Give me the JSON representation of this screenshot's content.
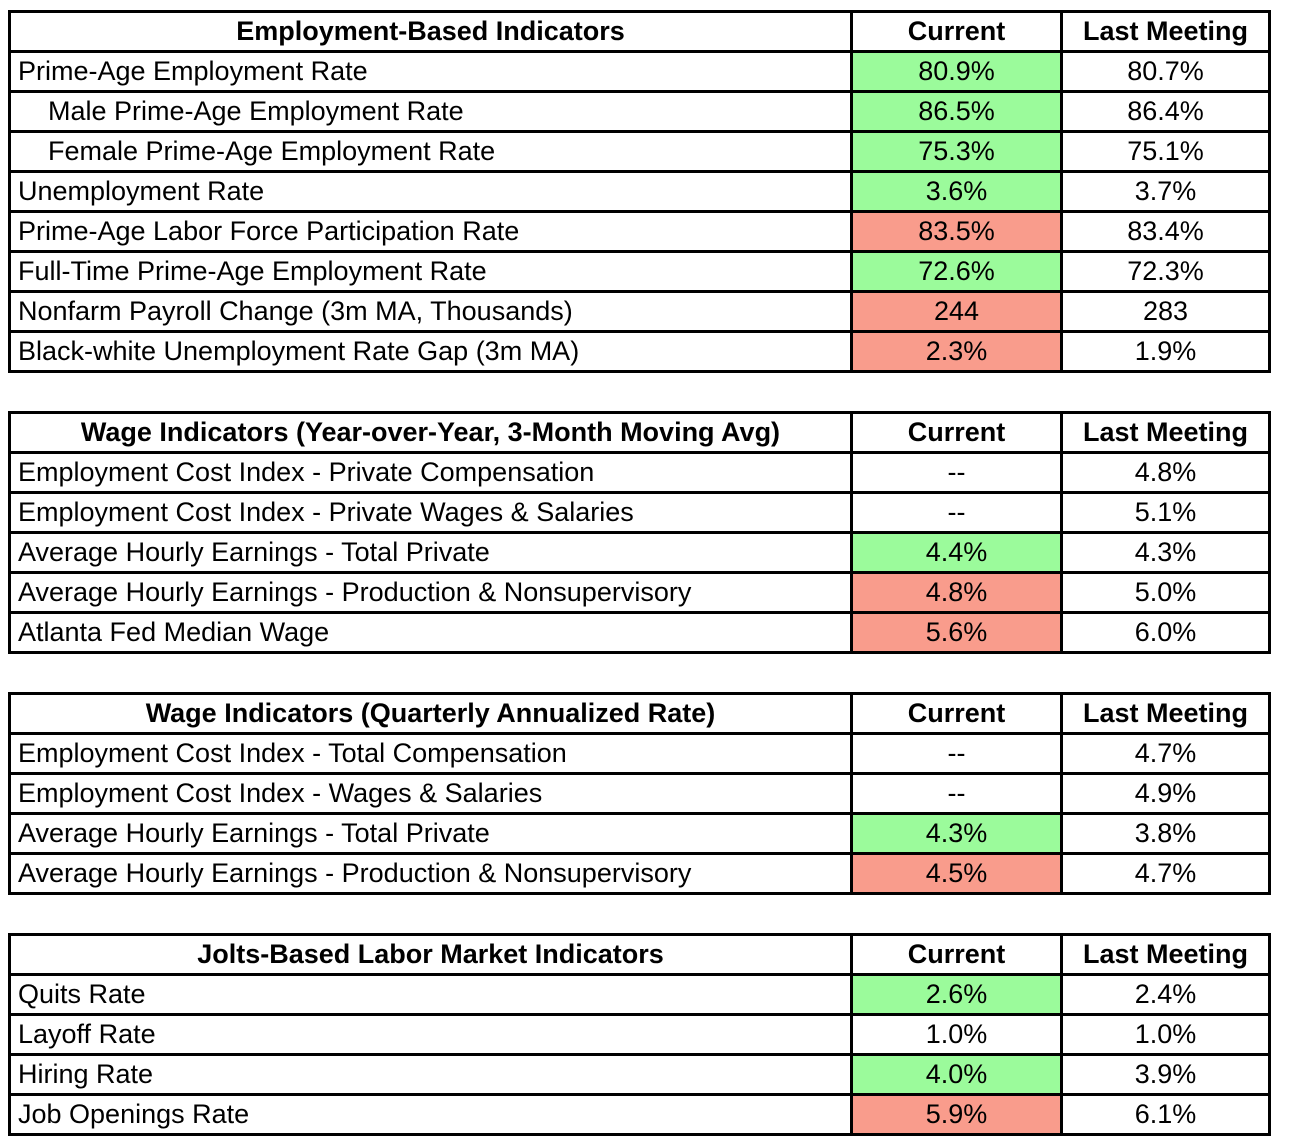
{
  "colors": {
    "green": "#9BFB9B",
    "red": "#F99C8C",
    "border": "#000000",
    "background": "#FFFFFF",
    "text": "#000000"
  },
  "chart_data": [
    {
      "type": "table",
      "title": "Employment-Based Indicators",
      "columns": [
        "Current",
        "Last Meeting"
      ],
      "rows": [
        {
          "label": "Prime-Age Employment Rate",
          "indent": false,
          "current": "80.9%",
          "highlight": "green",
          "last_meeting": "80.7%"
        },
        {
          "label": "Male Prime-Age Employment Rate",
          "indent": true,
          "current": "86.5%",
          "highlight": "green",
          "last_meeting": "86.4%"
        },
        {
          "label": "Female Prime-Age Employment Rate",
          "indent": true,
          "current": "75.3%",
          "highlight": "green",
          "last_meeting": "75.1%"
        },
        {
          "label": "Unemployment Rate",
          "indent": false,
          "current": "3.6%",
          "highlight": "green",
          "last_meeting": "3.7%"
        },
        {
          "label": "Prime-Age Labor Force Participation Rate",
          "indent": false,
          "current": "83.5%",
          "highlight": "red",
          "last_meeting": "83.4%"
        },
        {
          "label": "Full-Time Prime-Age Employment Rate",
          "indent": false,
          "current": "72.6%",
          "highlight": "green",
          "last_meeting": "72.3%"
        },
        {
          "label": "Nonfarm Payroll Change (3m MA, Thousands)",
          "indent": false,
          "current": "244",
          "highlight": "red",
          "last_meeting": "283"
        },
        {
          "label": "Black-white Unemployment Rate Gap (3m MA)",
          "indent": false,
          "current": "2.3%",
          "highlight": "red",
          "last_meeting": "1.9%"
        }
      ]
    },
    {
      "type": "table",
      "title": "Wage Indicators (Year-over-Year, 3-Month Moving Avg)",
      "columns": [
        "Current",
        "Last Meeting"
      ],
      "rows": [
        {
          "label": "Employment Cost Index - Private Compensation",
          "indent": false,
          "current": "--",
          "highlight": null,
          "last_meeting": "4.8%"
        },
        {
          "label": "Employment Cost Index - Private Wages & Salaries",
          "indent": false,
          "current": "--",
          "highlight": null,
          "last_meeting": "5.1%"
        },
        {
          "label": "Average Hourly Earnings - Total Private",
          "indent": false,
          "current": "4.4%",
          "highlight": "green",
          "last_meeting": "4.3%"
        },
        {
          "label": "Average Hourly Earnings - Production & Nonsupervisory",
          "indent": false,
          "current": "4.8%",
          "highlight": "red",
          "last_meeting": "5.0%"
        },
        {
          "label": "Atlanta Fed Median Wage",
          "indent": false,
          "current": "5.6%",
          "highlight": "red",
          "last_meeting": "6.0%"
        }
      ]
    },
    {
      "type": "table",
      "title": "Wage Indicators (Quarterly Annualized Rate)",
      "columns": [
        "Current",
        "Last Meeting"
      ],
      "rows": [
        {
          "label": "Employment Cost Index - Total Compensation",
          "indent": false,
          "current": "--",
          "highlight": null,
          "last_meeting": "4.7%"
        },
        {
          "label": "Employment Cost Index - Wages & Salaries",
          "indent": false,
          "current": "--",
          "highlight": null,
          "last_meeting": "4.9%"
        },
        {
          "label": "Average Hourly Earnings - Total Private",
          "indent": false,
          "current": "4.3%",
          "highlight": "green",
          "last_meeting": "3.8%"
        },
        {
          "label": "Average Hourly Earnings - Production & Nonsupervisory",
          "indent": false,
          "current": "4.5%",
          "highlight": "red",
          "last_meeting": "4.7%"
        }
      ]
    },
    {
      "type": "table",
      "title": "Jolts-Based Labor Market Indicators",
      "columns": [
        "Current",
        "Last Meeting"
      ],
      "rows": [
        {
          "label": "Quits Rate",
          "indent": false,
          "current": "2.6%",
          "highlight": "green",
          "last_meeting": "2.4%"
        },
        {
          "label": "Layoff Rate",
          "indent": false,
          "current": "1.0%",
          "highlight": null,
          "last_meeting": "1.0%"
        },
        {
          "label": "Hiring Rate",
          "indent": false,
          "current": "4.0%",
          "highlight": "green",
          "last_meeting": "3.9%"
        },
        {
          "label": "Job Openings Rate",
          "indent": false,
          "current": "5.9%",
          "highlight": "red",
          "last_meeting": "6.1%"
        }
      ]
    }
  ]
}
